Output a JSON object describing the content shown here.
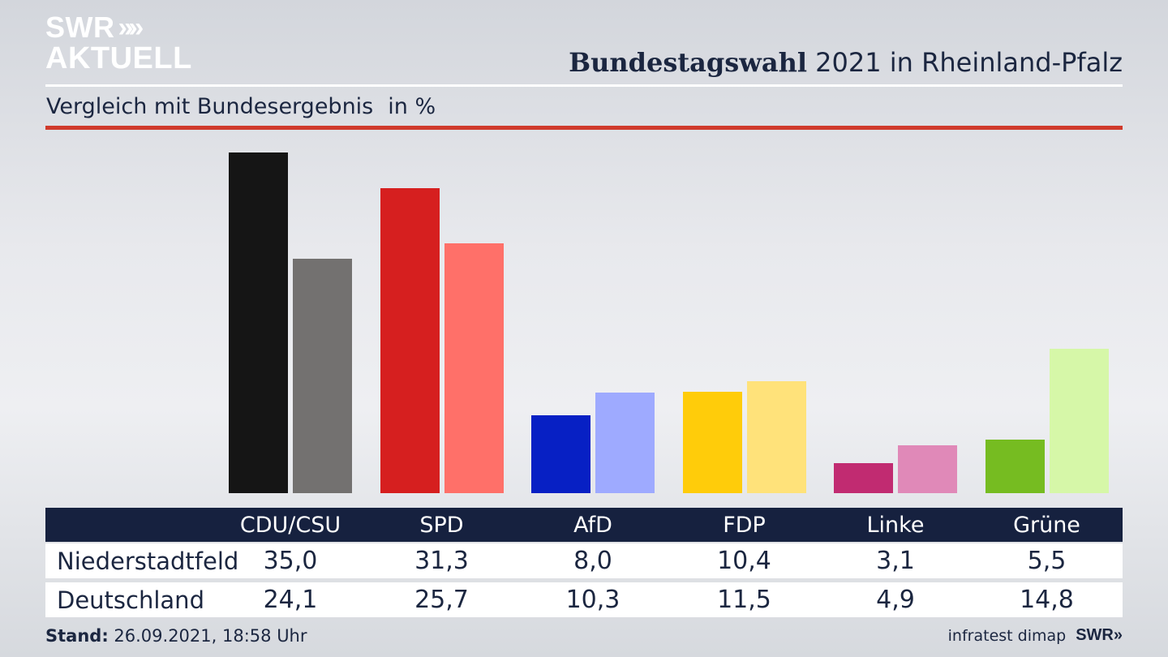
{
  "header": {
    "logo_top": "SWR",
    "logo_chevrons": "»",
    "logo_bottom": "AKTUELL",
    "title_bold": "Bundestagswahl",
    "title_rest": "2021 in Rheinland-Pfalz",
    "subtitle": "Vergleich mit Bundesergebnis",
    "subtitle_unit": "in %"
  },
  "chart_data": {
    "type": "bar",
    "categories": [
      "CDU/CSU",
      "SPD",
      "AfD",
      "FDP",
      "Linke",
      "Grüne"
    ],
    "series": [
      {
        "name": "Niederstadtfeld",
        "values": [
          35.0,
          31.3,
          8.0,
          10.4,
          3.1,
          5.5
        ]
      },
      {
        "name": "Deutschland",
        "values": [
          24.1,
          25.7,
          10.3,
          11.5,
          4.9,
          14.8
        ]
      }
    ],
    "colors": [
      [
        "#151515",
        "#737170"
      ],
      [
        "#d61f1f",
        "#ff7069"
      ],
      [
        "#0720c4",
        "#9eaaff"
      ],
      [
        "#ffcc0a",
        "#ffe27a"
      ],
      [
        "#c12b71",
        "#e089b8"
      ],
      [
        "#76bc21",
        "#d6f7a8"
      ]
    ],
    "ylim": [
      0,
      35.0
    ]
  },
  "table": {
    "headers": [
      "CDU/CSU",
      "SPD",
      "AfD",
      "FDP",
      "Linke",
      "Grüne"
    ],
    "rows": [
      {
        "label": "Niederstadtfeld",
        "values": [
          "35,0",
          "31,3",
          "8,0",
          "10,4",
          "3,1",
          "5,5"
        ]
      },
      {
        "label": "Deutschland",
        "values": [
          "24,1",
          "25,7",
          "10,3",
          "11,5",
          "4,9",
          "14,8"
        ]
      }
    ]
  },
  "footer": {
    "stand_label": "Stand:",
    "stand_value": "26.09.2021, 18:58 Uhr",
    "source": "infratest dimap",
    "brand": "SWR»"
  }
}
